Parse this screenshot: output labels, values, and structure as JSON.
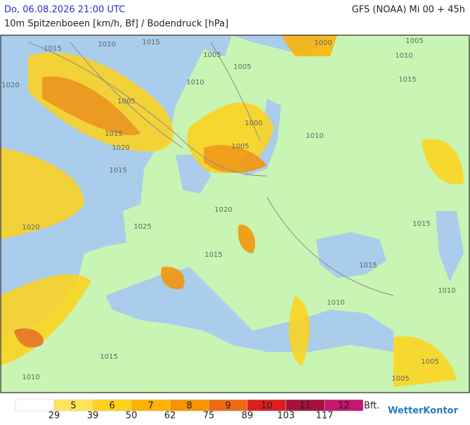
{
  "header": {
    "left": "Do, 06.08.2026 21:00 UTC",
    "right": "GFS (NOAA) Mi 00 + 45h",
    "subtitle": "10m Spitzenboeen [km/h, Bf] / Bodendruck [hPa]"
  },
  "map": {
    "isobar_labels": [
      1015,
      1010,
      1015,
      1005,
      1010,
      1005,
      1015,
      1020,
      1015,
      1020,
      1005,
      1000,
      1005,
      1010,
      1000,
      1010,
      1005,
      1015,
      1020,
      1025,
      1020,
      1015,
      1015,
      1015,
      1010,
      1010,
      1005,
      1005,
      1010,
      1015
    ]
  },
  "legend": {
    "bft": [
      5,
      6,
      7,
      8,
      9,
      10,
      11,
      12
    ],
    "unit": "Bft.",
    "colors": [
      "#ffffff",
      "#ffe45a",
      "#ffd21a",
      "#ffb200",
      "#f79200",
      "#ee6a12",
      "#de1e1e",
      "#a5103c",
      "#c4166e"
    ],
    "kmh": [
      29,
      39,
      50,
      62,
      75,
      89,
      103,
      117
    ],
    "logo": "WetterKontor"
  }
}
